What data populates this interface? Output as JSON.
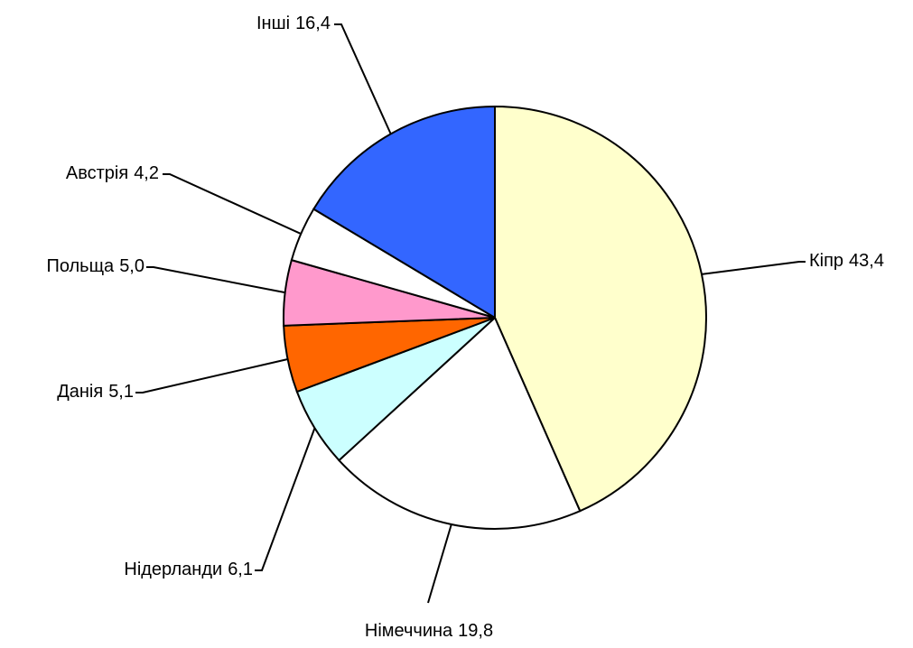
{
  "chart_data": {
    "type": "pie",
    "categories": [
      "Кіпр",
      "Німеччина",
      "Нідерланди",
      "Данія",
      "Польща",
      "Австрія",
      "Інші"
    ],
    "values": [
      43.4,
      19.8,
      6.1,
      5.1,
      5.0,
      4.2,
      16.4
    ],
    "value_labels": [
      "43,4",
      "19,8",
      "6,1",
      "5,1",
      "5,0",
      "4,2",
      "16,4"
    ],
    "colors": [
      "#FFFFCC",
      "#FFFFFF",
      "#CCFFFF",
      "#FF6600",
      "#FF99CC",
      "#FFFFFF",
      "#3366FF"
    ]
  }
}
